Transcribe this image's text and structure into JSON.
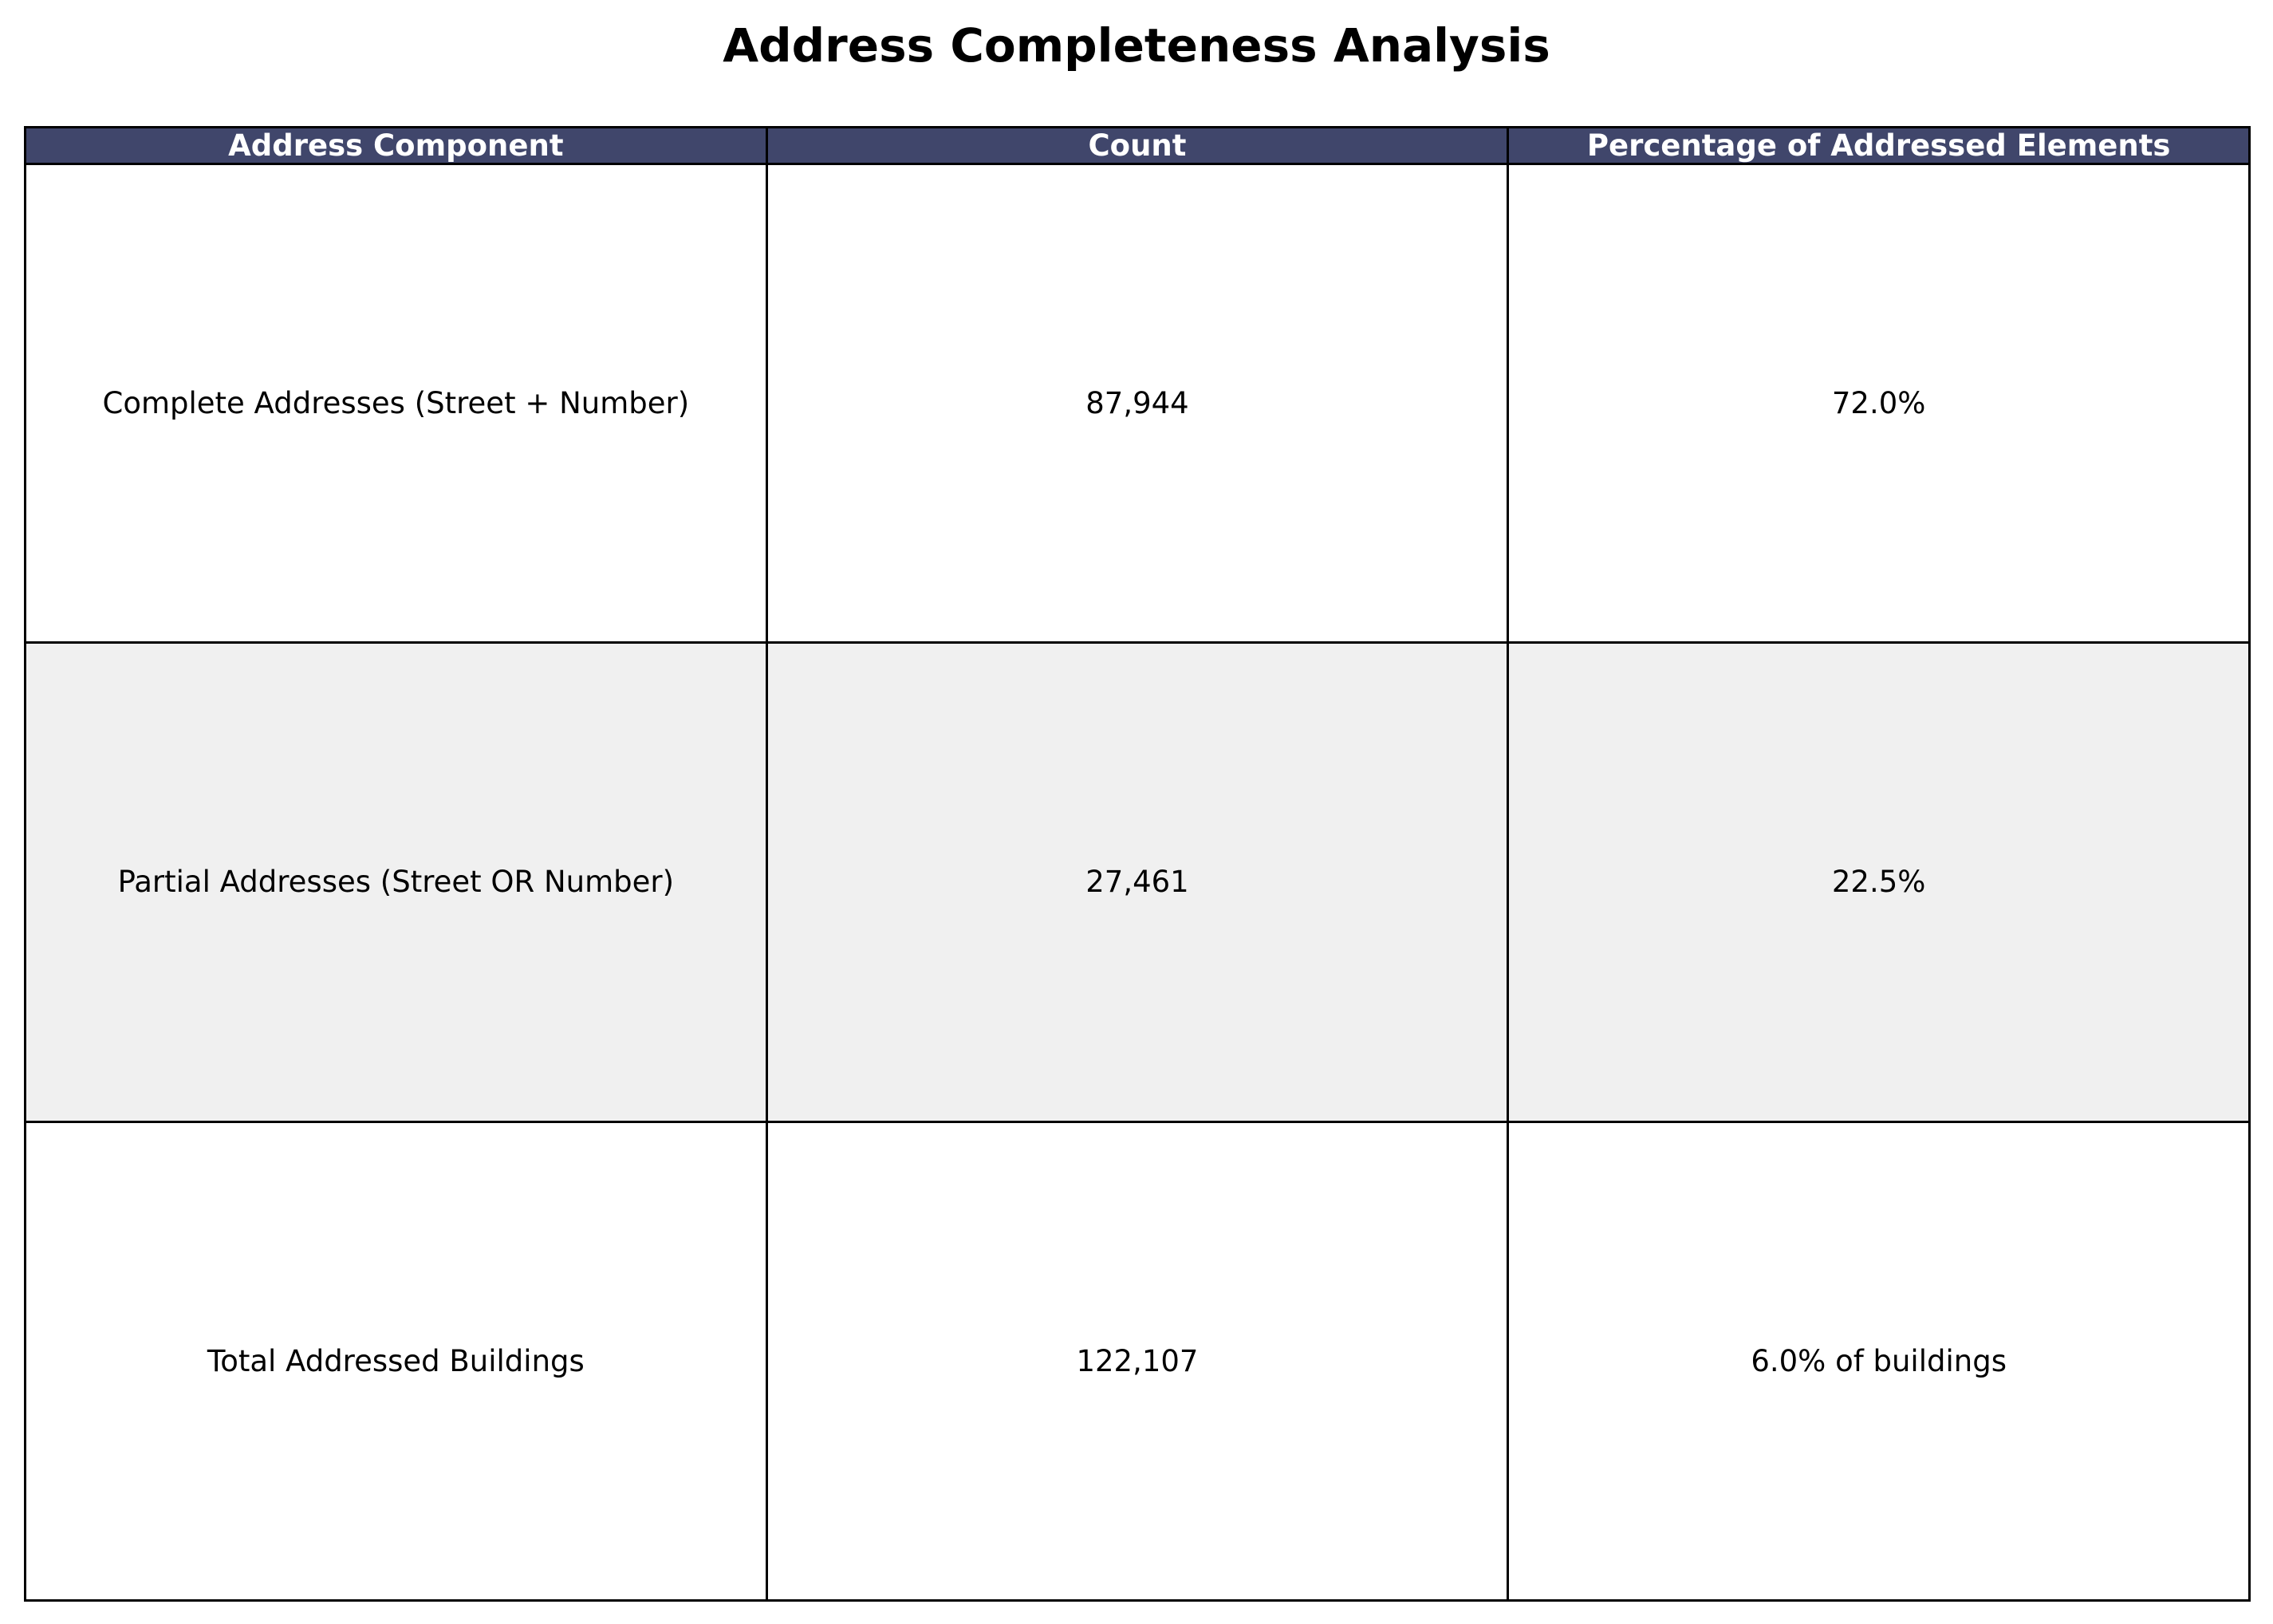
{
  "chart_data": {
    "type": "table",
    "title": "Address Completeness Analysis",
    "columns": [
      "Address Component",
      "Count",
      "Percentage of Addressed Elements"
    ],
    "rows": [
      [
        "Complete Addresses (Street + Number)",
        "87,944",
        "72.0%"
      ],
      [
        "Partial Addresses (Street OR Number)",
        "27,461",
        "22.5%"
      ],
      [
        "Total Addressed Buildings",
        "122,107",
        "6.0% of buildings"
      ]
    ],
    "colors": {
      "header_bg": "#40466b",
      "header_text": "#ffffff",
      "row_bg": [
        "#ffffff",
        "#f0f0f0",
        "#ffffff"
      ],
      "border": "#000000"
    }
  }
}
